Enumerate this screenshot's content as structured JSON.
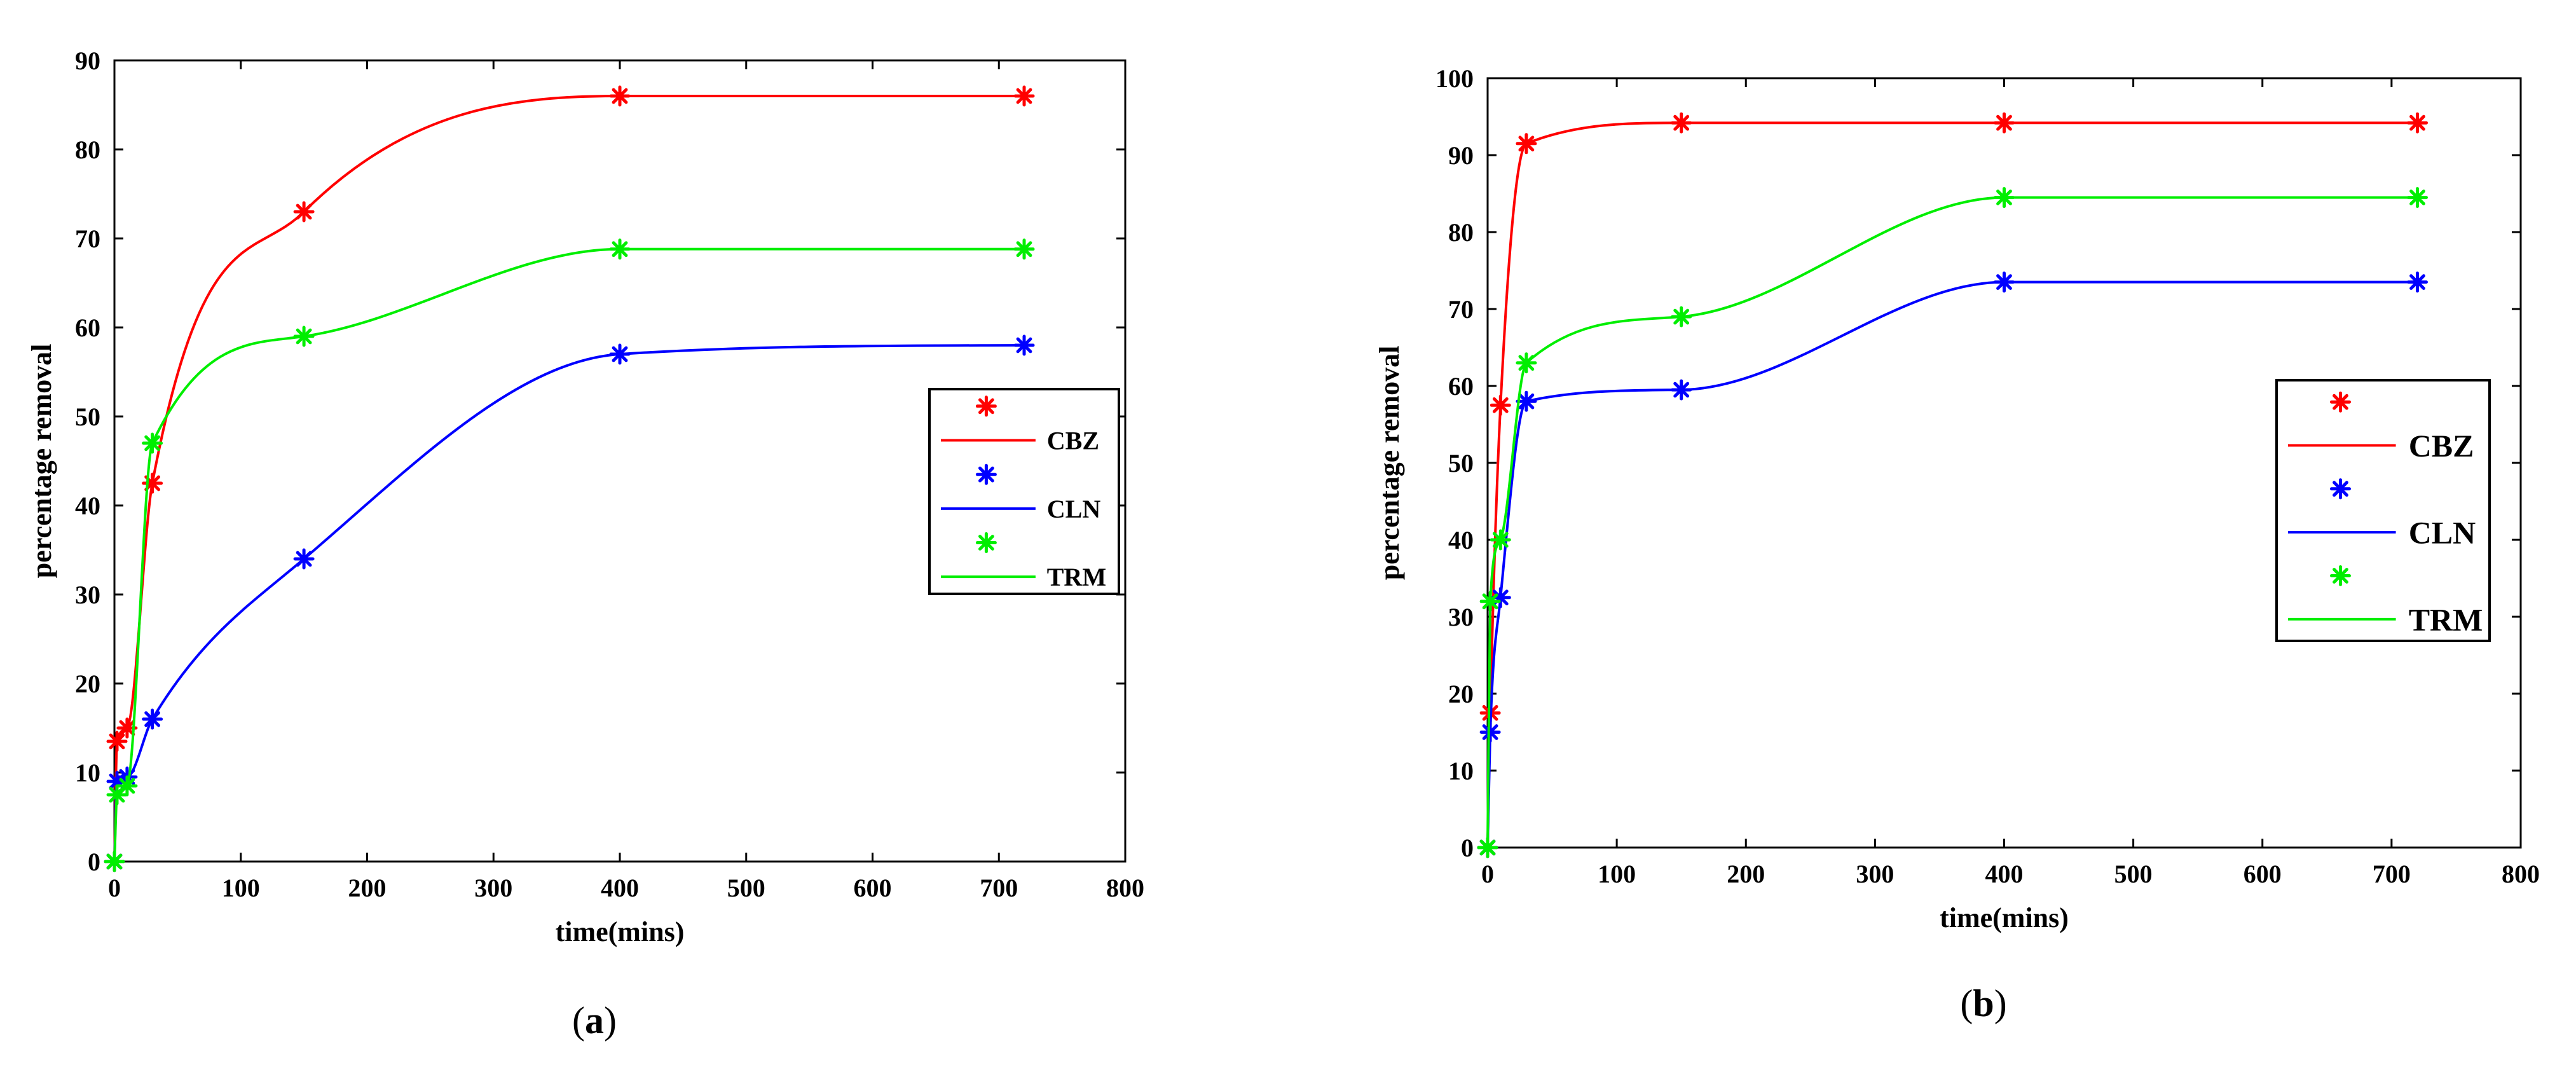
{
  "chart_data": [
    {
      "type": "line",
      "panel_label": "(a)",
      "xlabel": "time(mins)",
      "ylabel": "percentage removal",
      "xlim": [
        0,
        800
      ],
      "ylim": [
        0,
        90
      ],
      "xticks": [
        0,
        100,
        200,
        300,
        400,
        500,
        600,
        700,
        800
      ],
      "yticks": [
        0,
        10,
        20,
        30,
        40,
        50,
        60,
        70,
        80,
        90
      ],
      "grid": false,
      "legend_position": "right",
      "marker": "*",
      "series": [
        {
          "name": "CBZ",
          "color": "#ff0000",
          "x": [
            0,
            2,
            10,
            30,
            150,
            400,
            720
          ],
          "y": [
            0,
            13.5,
            15,
            42.5,
            73,
            86,
            86
          ]
        },
        {
          "name": "CLN",
          "color": "#0000ff",
          "x": [
            0,
            2,
            10,
            30,
            150,
            400,
            720
          ],
          "y": [
            0,
            9,
            9.5,
            16,
            34,
            57,
            58
          ]
        },
        {
          "name": "TRM",
          "color": "#00ee00",
          "x": [
            0,
            2,
            10,
            30,
            150,
            400,
            720
          ],
          "y": [
            0,
            7.5,
            8.5,
            47,
            59,
            68.8,
            68.8
          ]
        }
      ]
    },
    {
      "type": "line",
      "panel_label": "(b)",
      "xlabel": "time(mins)",
      "ylabel": "percentage removal",
      "xlim": [
        0,
        800
      ],
      "ylim": [
        0,
        100
      ],
      "xticks": [
        0,
        100,
        200,
        300,
        400,
        500,
        600,
        700,
        800
      ],
      "yticks": [
        0,
        10,
        20,
        30,
        40,
        50,
        60,
        70,
        80,
        90,
        100
      ],
      "grid": false,
      "legend_position": "right",
      "marker": "*",
      "series": [
        {
          "name": "CBZ",
          "color": "#ff0000",
          "x": [
            0,
            2,
            10,
            30,
            150,
            400,
            720
          ],
          "y": [
            0,
            17.5,
            57.5,
            91.5,
            94.2,
            94.2,
            94.2
          ]
        },
        {
          "name": "CLN",
          "color": "#0000ff",
          "x": [
            0,
            2,
            10,
            30,
            150,
            400,
            720
          ],
          "y": [
            0,
            15,
            32.5,
            58,
            59.5,
            73.5,
            73.5
          ]
        },
        {
          "name": "TRM",
          "color": "#00ee00",
          "x": [
            0,
            2,
            10,
            30,
            150,
            400,
            720
          ],
          "y": [
            0,
            32,
            40,
            63,
            69,
            84.5,
            84.5
          ]
        }
      ]
    }
  ]
}
